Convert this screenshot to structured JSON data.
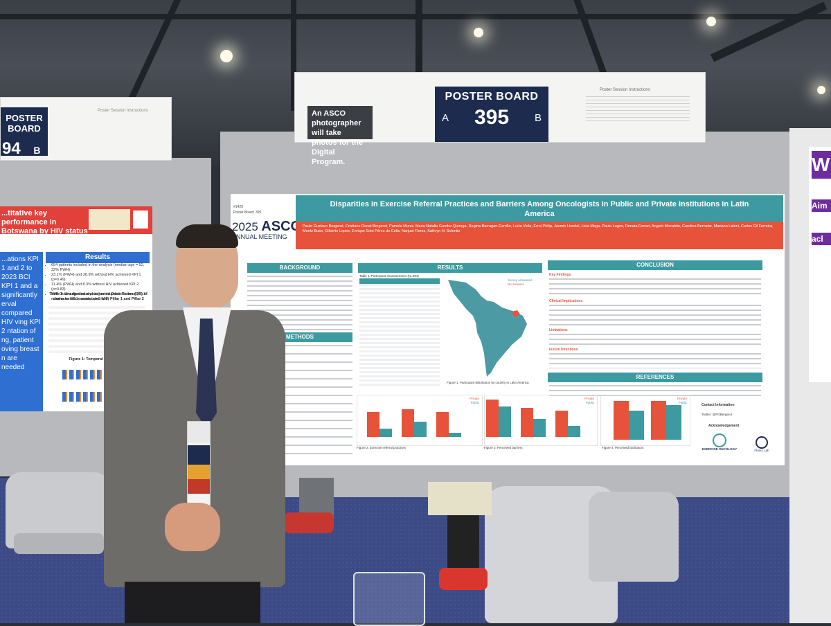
{
  "center_sign": {
    "photographer_note": "An ASCO photographer will take photos for the Digital Program.",
    "board_label": "POSTER BOARD",
    "side_a": "A",
    "board_number": "395",
    "side_b": "B",
    "instructions_title": "Poster Session Instructions"
  },
  "left_sign": {
    "board_label": "POSTER BOARD",
    "board_number": "94",
    "side_b": "B",
    "instructions_title": "Poster Session Instructions"
  },
  "main_poster": {
    "poster_id": "#1429",
    "poster_board": "Poster Board: 395",
    "meeting_year": "2025",
    "meeting_org": "ASCO",
    "meeting_name": "ANNUAL MEETING",
    "title": "Disparities in Exercise Referral Practices and Barriers Among Oncologists in Public and Private Institutions in Latin America",
    "authors": "Paulo Gustavo Bergerot, Cristiane Decat Bergerot, Pamela Muniz, Maria Natalia Gandur-Quiroga, Regina Barragan-Carrillo, Lucia Viola, Errol Philip, Jasmin Hundal, Livia Mega, Paulo Lages, Renata Ferrari, Angelo Mocabito, Carolina Bernabe, Mariana Laloni, Carlos Gil Ferreira, Murilo Buso, Gilberto Lopes, Enrique Soto Pérez de Celis, Narjust Florez, Kathryn H. Schmitz",
    "sections": {
      "background": "BACKGROUND",
      "methods": "METHODS",
      "results": "RESULTS",
      "conclusion": "CONCLUSION",
      "references": "REFERENCES"
    },
    "conclusion_subheads": [
      "Key Findings",
      "Clinical Implications",
      "Limitations",
      "Future Directions"
    ],
    "table_caption": "Table 1. Participant characteristics (N=454)",
    "map_legend": [
      "Survey answered",
      "No answers"
    ],
    "figure1_caption": "Figure 1. Participant distribution by country in Latin America",
    "figure2_caption": "Figure 2. Exercise referral practices",
    "figure3_caption": "Figure 3. Perceived barriers",
    "figure4_caption": "Figure 4. Perceived facilitators",
    "chart_legend": [
      "Private",
      "Public"
    ],
    "contact_label": "Contact Information",
    "twitter_label": "Twitter: @PGBergerot",
    "acknowledgement": "Acknowledgement",
    "logos": [
      "EXERCISE ONCOLOGY",
      "Florez Lab"
    ]
  },
  "left_poster": {
    "title": "...titative key performance in Botswana by HIV status",
    "results_label": "Results",
    "table_caption": "Table 1: Unadjusted and adjusted Odds Ratios (OR) of characteristics associated with Pillar 1 and Pillar 2",
    "figure_caption": "Figure 1: Temporal trend in H...",
    "left_col_text": "...ations KPI 1 and 2 to 2023 BCI KPI 1 and a significantly erval compared HIV ving KPI 2 ntation of ng, patient oving breast n are needed",
    "bullets": [
      "654 patients included in the analysis (median age = 52, 32% PWH)",
      "23.1% (PWH) and 28.9% without HIV achieved KPI 1 (p=0.49)",
      "11.4% (PWH) and 8.3% without HIV achieved KPI 2 (p=0.83)",
      "PWH had a significantly shorter diagnostic interval (12.2 months vs. 20.1 months, p<0.001)"
    ]
  },
  "right_poster": {
    "fragments": [
      "W",
      "Aim",
      "acl"
    ]
  },
  "colors": {
    "teal": "#3d9aa1",
    "coral": "#e6533a",
    "navy": "#1d2b4f",
    "carpet": "#3c4a86",
    "left_poster_blue": "#2e6fd1",
    "left_poster_red": "#e2403a"
  }
}
